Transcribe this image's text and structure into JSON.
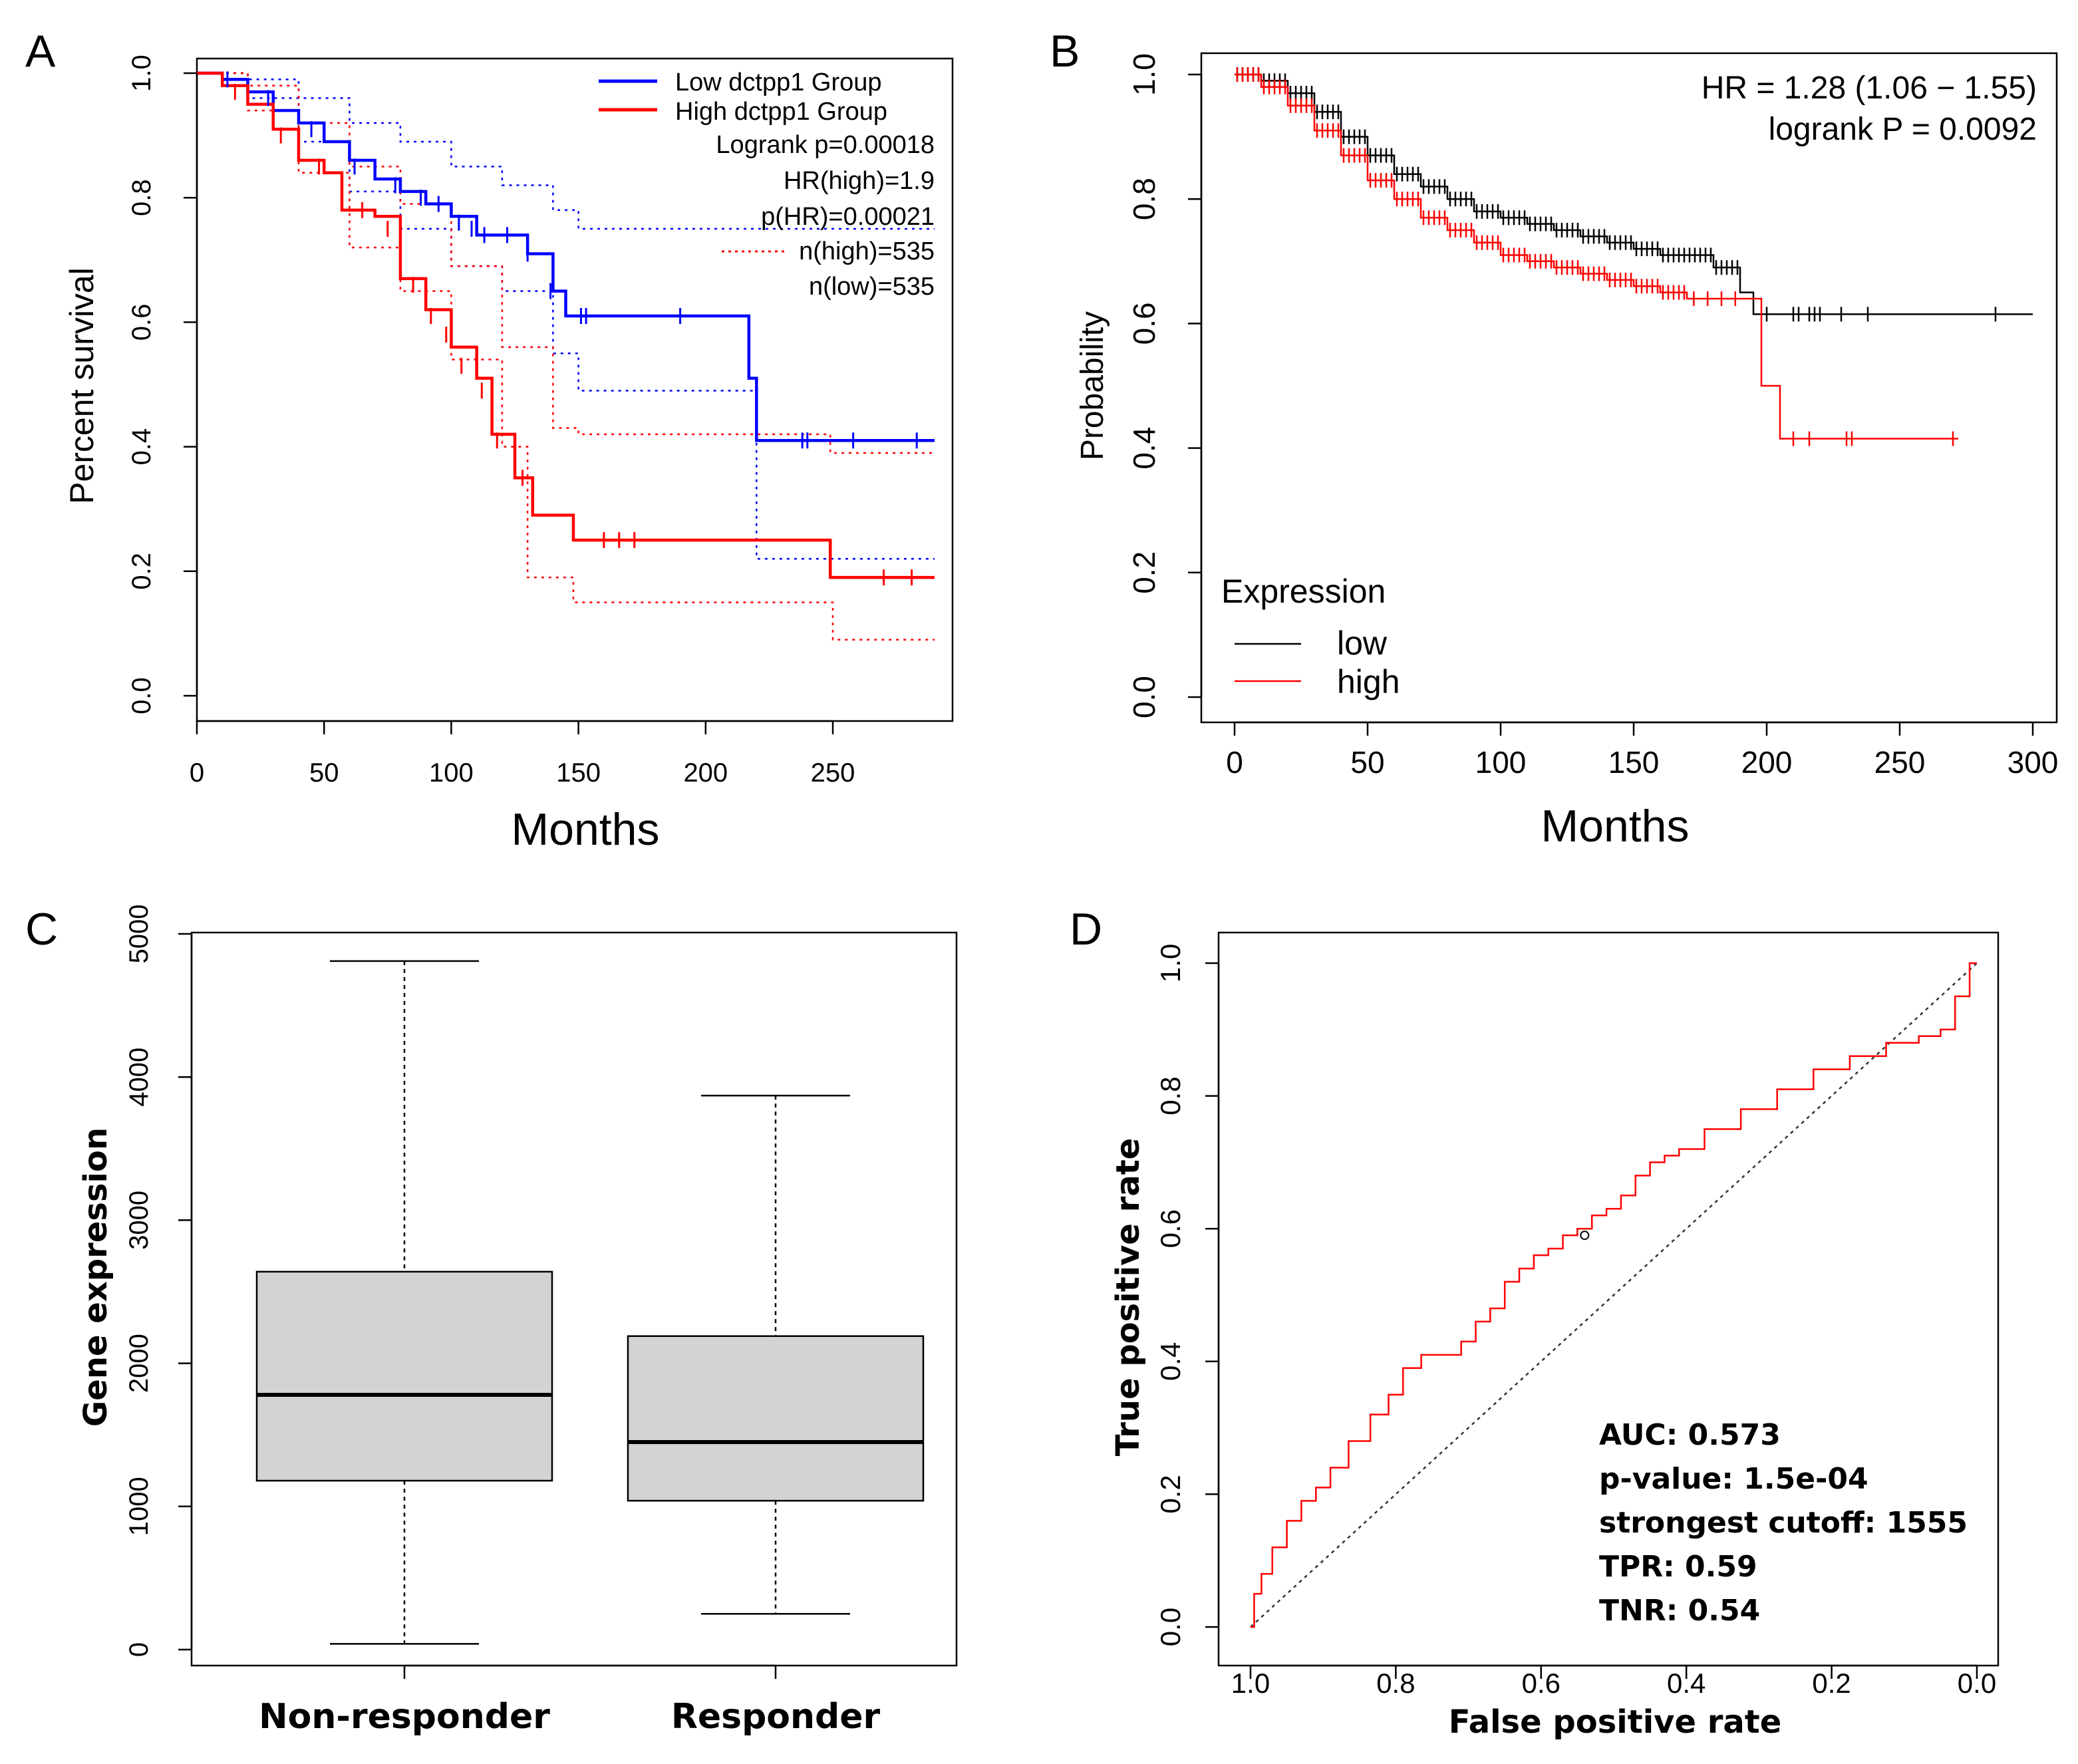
{
  "chart_data": [
    {
      "panel": "A",
      "type": "line",
      "subtype": "kaplan-meier",
      "xlabel": "Months",
      "ylabel": "Percent survival",
      "xlim": [
        0,
        290
      ],
      "ylim": [
        0,
        1
      ],
      "xticks": [
        "0",
        "50",
        "100",
        "150",
        "200",
        "250"
      ],
      "yticks": [
        "0.0",
        "0.2",
        "0.4",
        "0.6",
        "0.8",
        "1.0"
      ],
      "legend": [
        {
          "label": "Low dctpp1 Group",
          "color": "#0000ff"
        },
        {
          "label": "High dctpp1 Group",
          "color": "#ff0000"
        }
      ],
      "stats": [
        "Logrank p=0.00018",
        "HR(high)=1.9",
        "p(HR)=0.00021",
        "n(high)=535",
        "n(low)=535"
      ],
      "series": [
        {
          "name": "Low dctpp1 Group",
          "color": "#0000ff",
          "x": [
            0,
            10,
            20,
            30,
            40,
            50,
            60,
            70,
            80,
            90,
            100,
            110,
            120,
            130,
            140,
            145,
            200,
            217,
            220,
            290
          ],
          "y": [
            1.0,
            0.99,
            0.97,
            0.94,
            0.92,
            0.89,
            0.86,
            0.83,
            0.81,
            0.79,
            0.77,
            0.74,
            0.74,
            0.71,
            0.65,
            0.61,
            0.61,
            0.51,
            0.41,
            0.41
          ]
        },
        {
          "name": "High dctpp1 Group",
          "color": "#ff0000",
          "x": [
            0,
            10,
            20,
            30,
            40,
            50,
            57,
            70,
            80,
            90,
            100,
            110,
            116,
            125,
            132,
            148,
            200,
            249,
            290
          ],
          "y": [
            1.0,
            0.98,
            0.95,
            0.91,
            0.86,
            0.84,
            0.78,
            0.77,
            0.67,
            0.62,
            0.56,
            0.51,
            0.42,
            0.35,
            0.29,
            0.25,
            0.25,
            0.19,
            0.19
          ]
        }
      ],
      "bands": [
        {
          "color": "#0000ff",
          "upper": {
            "x": [
              0,
              20,
              40,
              60,
              80,
              100,
              120,
              140,
              150,
              290
            ],
            "y": [
              1.0,
              0.99,
              0.96,
              0.92,
              0.89,
              0.85,
              0.82,
              0.78,
              0.75,
              0.75
            ]
          },
          "lower": {
            "x": [
              0,
              20,
              40,
              60,
              80,
              100,
              120,
              140,
              150,
              215,
              220,
              290
            ],
            "y": [
              1.0,
              0.96,
              0.89,
              0.81,
              0.75,
              0.69,
              0.65,
              0.55,
              0.49,
              0.49,
              0.22,
              0.22
            ]
          }
        },
        {
          "color": "#ff0000",
          "upper": {
            "x": [
              0,
              20,
              40,
              60,
              80,
              100,
              120,
              140,
              150,
              249,
              290
            ],
            "y": [
              1.0,
              0.98,
              0.92,
              0.85,
              0.79,
              0.69,
              0.56,
              0.43,
              0.42,
              0.39,
              0.39
            ]
          },
          "lower": {
            "x": [
              0,
              20,
              40,
              60,
              80,
              100,
              120,
              130,
              148,
              248,
              250,
              290
            ],
            "y": [
              1.0,
              0.94,
              0.84,
              0.72,
              0.65,
              0.54,
              0.4,
              0.19,
              0.15,
              0.15,
              0.09,
              0.09
            ]
          }
        }
      ],
      "censor_marks": [
        {
          "color": "#0000ff",
          "x": [
            12,
            28,
            45,
            62,
            78,
            88,
            95,
            103,
            108,
            113,
            122,
            130,
            139,
            151,
            153,
            190,
            238,
            240,
            258,
            283
          ],
          "y": [
            0.99,
            0.96,
            0.91,
            0.85,
            0.82,
            0.8,
            0.79,
            0.76,
            0.75,
            0.74,
            0.74,
            0.71,
            0.65,
            0.61,
            0.61,
            0.61,
            0.41,
            0.41,
            0.41,
            0.41
          ]
        },
        {
          "color": "#ff0000",
          "x": [
            15,
            33,
            48,
            65,
            75,
            85,
            92,
            98,
            104,
            112,
            118,
            128,
            160,
            166,
            172,
            270,
            281
          ],
          "y": [
            0.97,
            0.9,
            0.85,
            0.78,
            0.75,
            0.66,
            0.61,
            0.58,
            0.53,
            0.49,
            0.41,
            0.35,
            0.25,
            0.25,
            0.25,
            0.19,
            0.19
          ]
        }
      ]
    },
    {
      "panel": "B",
      "type": "line",
      "subtype": "kaplan-meier",
      "xlabel": "Months",
      "ylabel": "Probability",
      "xlim": [
        0,
        300
      ],
      "ylim": [
        0,
        1
      ],
      "xticks": [
        "0",
        "50",
        "100",
        "150",
        "200",
        "250",
        "300"
      ],
      "yticks": [
        "0.0",
        "0.2",
        "0.4",
        "0.6",
        "0.8",
        "1.0"
      ],
      "stats": [
        "HR = 1.28 (1.06 − 1.55)",
        "logrank P = 0.0092"
      ],
      "legend_title": "Expression",
      "legend": [
        {
          "label": "low",
          "color": "#000000"
        },
        {
          "label": "high",
          "color": "#ff0000"
        }
      ],
      "series": [
        {
          "name": "low",
          "color": "#000000",
          "x": [
            0,
            10,
            20,
            30,
            40,
            50,
            60,
            70,
            80,
            90,
            100,
            110,
            120,
            130,
            140,
            150,
            160,
            170,
            180,
            190,
            195,
            300
          ],
          "y": [
            1.0,
            0.99,
            0.97,
            0.94,
            0.9,
            0.87,
            0.84,
            0.82,
            0.8,
            0.78,
            0.77,
            0.76,
            0.75,
            0.74,
            0.73,
            0.72,
            0.71,
            0.71,
            0.69,
            0.65,
            0.615,
            0.615
          ]
        },
        {
          "name": "high",
          "color": "#ff0000",
          "x": [
            0,
            10,
            20,
            30,
            40,
            50,
            60,
            70,
            80,
            90,
            100,
            110,
            120,
            130,
            140,
            150,
            160,
            170,
            196,
            198,
            203,
            205,
            272
          ],
          "y": [
            1.0,
            0.98,
            0.95,
            0.91,
            0.87,
            0.83,
            0.8,
            0.77,
            0.75,
            0.73,
            0.71,
            0.7,
            0.69,
            0.68,
            0.67,
            0.66,
            0.65,
            0.64,
            0.64,
            0.5,
            0.5,
            0.415,
            0.415
          ]
        }
      ],
      "censor_marks": [
        {
          "color": "#000000",
          "x": [
            200,
            210,
            212,
            216,
            218,
            220,
            228,
            238,
            286
          ],
          "y": [
            0.615,
            0.615,
            0.615,
            0.615,
            0.615,
            0.615,
            0.615,
            0.615,
            0.615
          ]
        },
        {
          "color": "#ff0000",
          "x": [
            210,
            216,
            230,
            232,
            270
          ],
          "y": [
            0.415,
            0.415,
            0.415,
            0.415,
            0.415
          ]
        }
      ]
    },
    {
      "panel": "C",
      "type": "box",
      "xlabel": "",
      "ylabel": "Gene expression",
      "ylim": [
        0,
        5000
      ],
      "yticks": [
        "0",
        "1000",
        "2000",
        "3000",
        "4000",
        "5000"
      ],
      "categories": [
        "Non-responder",
        "Responder"
      ],
      "boxes": [
        {
          "name": "Non-responder",
          "whisker_low": 40,
          "q1": 1180,
          "median": 1780,
          "q3": 2640,
          "whisker_high": 4810
        },
        {
          "name": "Responder",
          "whisker_low": 250,
          "q1": 1040,
          "median": 1450,
          "q3": 2190,
          "whisker_high": 3870
        }
      ]
    },
    {
      "panel": "D",
      "type": "line",
      "subtype": "roc",
      "xlabel": "False positive rate",
      "ylabel": "True positive rate",
      "xlim": [
        1.0,
        0.0
      ],
      "ylim": [
        0,
        1
      ],
      "xticks": [
        "1.0",
        "0.8",
        "0.6",
        "0.4",
        "0.2",
        "0.0"
      ],
      "yticks": [
        "0.0",
        "0.2",
        "0.4",
        "0.6",
        "0.8",
        "1.0"
      ],
      "stats": [
        "AUC: 0.573",
        "p-value: 1.5e-04",
        "strongest cutoff: 1555",
        "TPR: 0.59",
        "TNR: 0.54"
      ],
      "series": [
        {
          "name": "ROC",
          "color": "#ff0000",
          "fpr": [
            1.0,
            0.99,
            0.98,
            0.96,
            0.94,
            0.92,
            0.9,
            0.88,
            0.85,
            0.82,
            0.8,
            0.78,
            0.75,
            0.72,
            0.7,
            0.68,
            0.66,
            0.64,
            0.62,
            0.6,
            0.58,
            0.56,
            0.54,
            0.52,
            0.5,
            0.48,
            0.46,
            0.44,
            0.42,
            0.4,
            0.35,
            0.3,
            0.25,
            0.2,
            0.15,
            0.1,
            0.06,
            0.04,
            0.02,
            0.0
          ],
          "tpr": [
            0.0,
            0.05,
            0.08,
            0.12,
            0.16,
            0.19,
            0.21,
            0.24,
            0.28,
            0.32,
            0.35,
            0.39,
            0.41,
            0.41,
            0.43,
            0.46,
            0.48,
            0.52,
            0.54,
            0.56,
            0.57,
            0.59,
            0.6,
            0.62,
            0.63,
            0.65,
            0.68,
            0.7,
            0.71,
            0.72,
            0.75,
            0.78,
            0.81,
            0.84,
            0.86,
            0.88,
            0.89,
            0.9,
            0.95,
            1.0
          ]
        },
        {
          "name": "diagonal",
          "color": "#333333",
          "fpr": [
            1.0,
            0.0
          ],
          "tpr": [
            0.0,
            1.0
          ]
        }
      ],
      "marker": {
        "fpr": 0.54,
        "tpr": 0.59
      }
    }
  ],
  "panel_labels": [
    "A",
    "B",
    "C",
    "D"
  ]
}
